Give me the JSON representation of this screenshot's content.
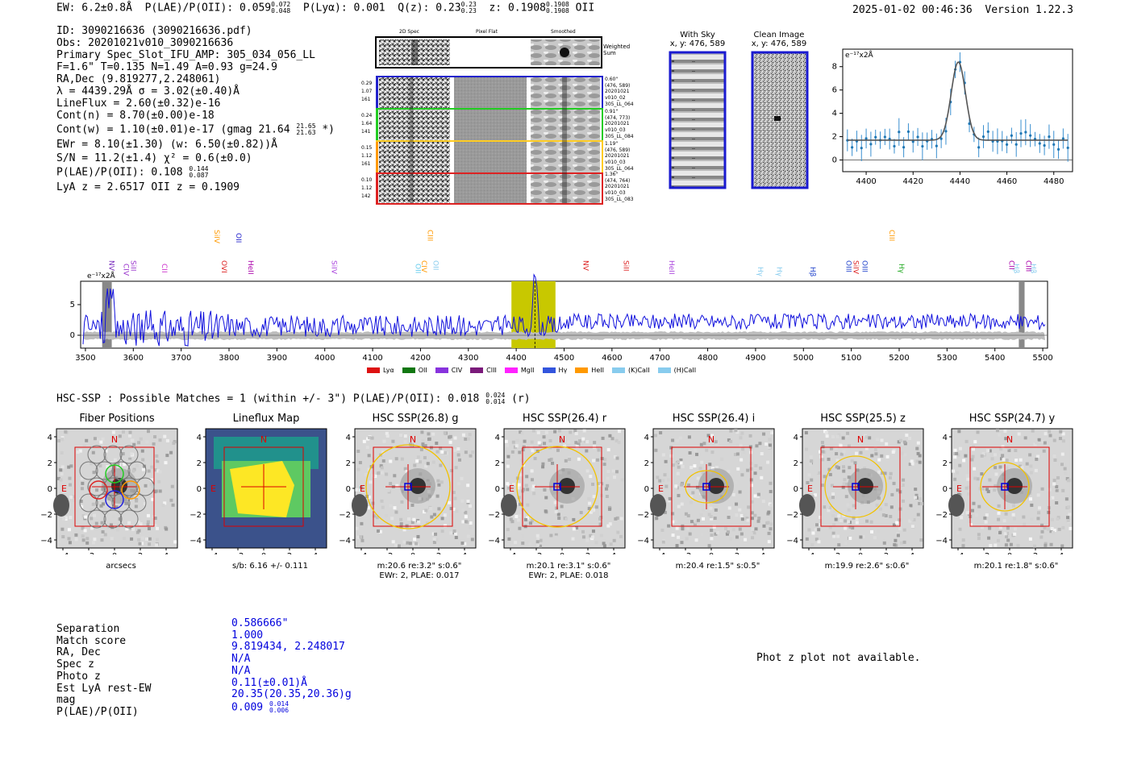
{
  "header": {
    "ew_label": "EW: 6.2±0.8Å",
    "plae_label": "P(LAE)/P(OII): 0.059",
    "plae_hi": "0.072",
    "plae_lo": "0.048",
    "plya_label": "P(Lyα): 0.001",
    "qz_label": "Q(z): 0.23",
    "qz_hi": "0.23",
    "qz_lo": "0.23",
    "z_label": "z: 0.1908",
    "z_hi": "0.1908",
    "z_lo": "0.1908",
    "z_line": "OII",
    "timestamp": "2025-01-02 00:46:36",
    "version": "Version 1.22.3"
  },
  "info": {
    "id": "ID: 3090216636 (3090216636.pdf)",
    "obs": "Obs: 20201021v010_3090216636",
    "primary": "Primary Spec_Slot_IFU_AMP: 305_034_056_LL",
    "fwhm": "F=1.6\"  T=0.135  N=1.49  A=0.93  g=24.9",
    "radec": "RA,Dec (9.819277,2.248061)",
    "wave": "λ = 4439.29Å  σ = 3.02(±0.40)Å",
    "lineflux": "LineFlux = 2.60(±0.32)e-16",
    "contn": "Cont(n) = 8.70(±0.00)e-18",
    "contw_pre": "Cont(w) = 1.10(±0.01)e-17 (gmag 21.64",
    "contw_hi": "21.65",
    "contw_lo": "21.63",
    "contw_post": "*)",
    "ewr": "EWr = 8.10(±1.30) (w: 6.50(±0.82))Å",
    "sn": "S/N = 11.2(±1.4)  χ² = 0.6(±0.0)",
    "plae_pre": "P(LAE)/P(OII): 0.108",
    "plae_hi": "0.144",
    "plae_lo": "0.087",
    "lya": "LyA z = 2.6517  OII z = 0.1909"
  },
  "cutouts": {
    "col_2d": "2D Spec",
    "col_flat": "Pixel Flat",
    "col_smooth": "Smoothed",
    "weighted": "Weighted Sum",
    "rows": [
      {
        "stats": [
          "0.29",
          "1.07",
          "161"
        ],
        "info": [
          "0.60\"",
          "(476, 589)",
          "20201021",
          "v010_02",
          "305_LL_064"
        ],
        "color": "#2222cc"
      },
      {
        "stats": [
          "0.24",
          "1.64",
          "141"
        ],
        "info": [
          "0.91\"",
          "(474, 773)",
          "20201021",
          "v010_03",
          "305_LL_084"
        ],
        "color": "#22cc22"
      },
      {
        "stats": [
          "0.15",
          "1.12",
          "161"
        ],
        "info": [
          "1.19\"",
          "(476, 589)",
          "20201021",
          "v010_03",
          "305_LL_064"
        ],
        "color": "#ff9900"
      },
      {
        "stats": [
          "0.10",
          "1.12",
          "142"
        ],
        "info": [
          "1.36\"",
          "(474, 764)",
          "20201021",
          "v010_03",
          "305_LL_083"
        ],
        "color": "#dd2222"
      }
    ]
  },
  "sky": {
    "with_sky": "With Sky",
    "with_sky_xy": "x, y: 476, 589",
    "clean": "Clean Image",
    "clean_xy": "x, y: 476, 589"
  },
  "zoom_plot": {
    "ylabel": "e⁻¹⁷x2Å",
    "xticks": [
      "4400",
      "4420",
      "4440",
      "4460",
      "4480"
    ],
    "yticks": [
      "0",
      "2",
      "4",
      "6",
      "8"
    ]
  },
  "spectrum": {
    "ylabel": "e⁻¹⁷x2Å",
    "xticks": [
      "3500",
      "3600",
      "3700",
      "3800",
      "3900",
      "4000",
      "4100",
      "4200",
      "4300",
      "4400",
      "4500",
      "4600",
      "4700",
      "4800",
      "4900",
      "5000",
      "5100",
      "5200",
      "5300",
      "5400",
      "5500"
    ],
    "yticks": [
      "0",
      "5"
    ],
    "lines": [
      {
        "name": "NV",
        "color": "#7b2fbe"
      },
      {
        "name": "CIV",
        "color": "#9933cc"
      },
      {
        "name": "SiII",
        "color": "#9933cc"
      },
      {
        "name": "CII",
        "color": "#cc33cc"
      },
      {
        "name": "SiIV",
        "color": "#ff9900"
      },
      {
        "name": "OVI",
        "color": "#dd2222"
      },
      {
        "name": "OII",
        "color": "#2222cc"
      },
      {
        "name": "HeII",
        "color": "#aa00aa"
      },
      {
        "name": "SiIV",
        "color": "#aa44dd"
      },
      {
        "name": "OII",
        "color": "#66ccee"
      },
      {
        "name": "CIV",
        "color": "#ff9900"
      },
      {
        "name": "CIII",
        "color": "#ff9900"
      },
      {
        "name": "OII",
        "color": "#88ccee"
      },
      {
        "name": "NV",
        "color": "#dd2222"
      },
      {
        "name": "SiII",
        "color": "#dd2222"
      },
      {
        "name": "HeII",
        "color": "#aa44dd"
      },
      {
        "name": "Hγ",
        "color": "#88ccee"
      },
      {
        "name": "Hγ",
        "color": "#88ccee"
      },
      {
        "name": "Hβ",
        "color": "#2244cc"
      },
      {
        "name": "OIII",
        "color": "#2244cc"
      },
      {
        "name": "SiIV",
        "color": "#dd2222"
      },
      {
        "name": "OIII",
        "color": "#2244cc"
      },
      {
        "name": "CIII",
        "color": "#ff9900"
      },
      {
        "name": "Hγ",
        "color": "#22aa22"
      },
      {
        "name": "CII",
        "color": "#aa00aa"
      },
      {
        "name": "Hβ",
        "color": "#88ccee"
      },
      {
        "name": "CIII",
        "color": "#aa00aa"
      },
      {
        "name": "Hβ",
        "color": "#88ccee"
      }
    ],
    "legend": [
      {
        "label": "Lyα",
        "color": "#dd1111"
      },
      {
        "label": "OII",
        "color": "#117711"
      },
      {
        "label": "CIV",
        "color": "#8833dd"
      },
      {
        "label": "CIII",
        "color": "#7a1a7a"
      },
      {
        "label": "MgII",
        "color": "#ff22ff"
      },
      {
        "label": "Hγ",
        "color": "#3355dd"
      },
      {
        "label": "HeII",
        "color": "#ff9900"
      },
      {
        "label": "(K)CaII",
        "color": "#88ccee"
      },
      {
        "label": "(H)CaII",
        "color": "#88ccee"
      }
    ]
  },
  "hsc": {
    "summary_pre": "HSC-SSP : Possible Matches = 1 (within +/- 3\")  P(LAE)/P(OII): 0.018",
    "summary_hi": "0.024",
    "summary_lo": "0.014",
    "summary_post": "(r)",
    "panels": [
      {
        "title": "Fiber Positions",
        "cap1": "arcsecs",
        "cap2": ""
      },
      {
        "title": "Lineflux Map",
        "cap1": "s/b: 6.16 +/- 0.111",
        "cap2": ""
      },
      {
        "title": "HSC SSP(26.8) g",
        "cap1": "m:20.6  re:3.2\"  s:0.6\"",
        "cap2": "EWr: 2, PLAE: 0.017"
      },
      {
        "title": "HSC SSP(26.4) r",
        "cap1": "m:20.1  re:3.1\"  s:0.6\"",
        "cap2": "EWr: 2, PLAE: 0.018"
      },
      {
        "title": "HSC SSP(26.4) i",
        "cap1": "m:20.4  re:1.5\"  s:0.5\"",
        "cap2": ""
      },
      {
        "title": "HSC SSP(25.5) z",
        "cap1": "m:19.9  re:2.6\"  s:0.6\"",
        "cap2": ""
      },
      {
        "title": "HSC SSP(24.7) y",
        "cap1": "m:20.1  re:1.8\"  s:0.6\"",
        "cap2": ""
      }
    ],
    "axis_ticks_y": [
      "4",
      "2",
      "0",
      "−2",
      "−4"
    ],
    "axis_ticks_x": [
      "−4",
      "−2",
      "0",
      "2",
      "4"
    ],
    "compass_n": "N",
    "compass_e": "E"
  },
  "match": {
    "labels": [
      "Separation",
      "Match score",
      "RA, Dec",
      "Spec z",
      "Photo z",
      "Est LyA rest-EW",
      "mag",
      "P(LAE)/P(OII)"
    ],
    "values": [
      "0.586666\"",
      "1.000",
      "9.819434, 2.248017",
      "N/A",
      "N/A",
      "0.11(±0.01)Å",
      "20.35(20.35,20.36)g"
    ],
    "plae_val": "0.009",
    "plae_hi": "0.014",
    "plae_lo": "0.006",
    "photz_msg": "Phot z plot not available."
  }
}
